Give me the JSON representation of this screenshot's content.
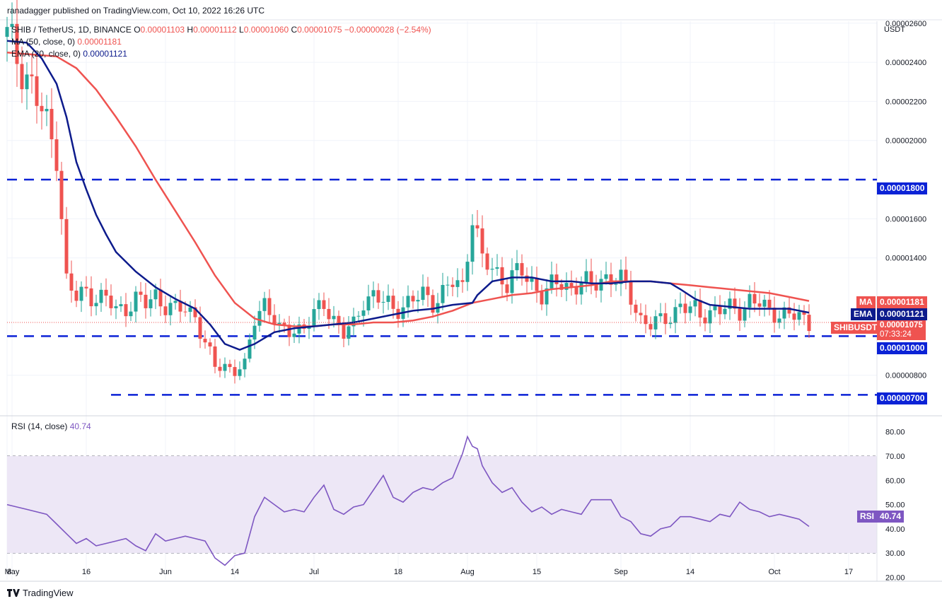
{
  "header": {
    "published": "ranadagger published on TradingView.com, Oct 10, 2022 16:26 UTC",
    "symbol": "SHIB / TetherUS, 1D, BINANCE",
    "o_label": "O",
    "o": "0.00001103",
    "h_label": "H",
    "h": "0.00001112",
    "l_label": "L",
    "l": "0.00001060",
    "c_label": "C",
    "c": "0.00001075",
    "change": "−0.00000028 (−2.54%)",
    "ma_label": "MA (50, close, 0)",
    "ma_value": "0.00001181",
    "ema_label": "EMA (20, close, 0)",
    "ema_value": "0.00001121",
    "rsi_label": "RSI (14, close)",
    "rsi_value": "40.74"
  },
  "footer": {
    "brand": "TradingView"
  },
  "tags": {
    "ma": "MA",
    "ma_value": "0.00001181",
    "ema": "EMA",
    "ema_value": "0.00001121",
    "symbol": "SHIBUSDT",
    "price": "0.00001075",
    "countdown": "07:33:24",
    "rsi": "RSI",
    "rsi_value": "40.74",
    "level_1800": "0.00001800",
    "level_1000": "0.00001000",
    "level_700": "0.00000700"
  },
  "colors": {
    "up": "#26a69a",
    "down": "#ef5350",
    "ma": "#ef5350",
    "ema": "#0d1b8c",
    "rsi": "#7e57c2",
    "rsi_band": "#ede7f6",
    "level": "#0b22d6"
  },
  "chart_data": [
    {
      "type": "candlestick",
      "title": "SHIB / TetherUS, 1D, BINANCE",
      "ylabel": "USDT",
      "ylim": [
        6e-06,
        2.61e-05
      ],
      "y_ticks": [
        "0.00002600",
        "0.00002400",
        "0.00002200",
        "0.00002000",
        "0.00001600",
        "0.00001400",
        "0.00000800"
      ],
      "x_ticks": [
        "8",
        "May",
        "16",
        "Jun",
        "14",
        "Jul",
        "18",
        "Aug",
        "15",
        "Sep",
        "14",
        "Oct",
        "17"
      ],
      "x_tick_days": [
        0,
        1,
        16,
        32,
        46,
        62,
        79,
        93,
        107,
        124,
        138,
        155,
        170
      ],
      "horizontal_levels": [
        1.8e-05,
        1e-05,
        7e-06
      ],
      "series": [
        {
          "name": "SHIBUSDT",
          "kind": "close",
          "days": [
            0,
            5,
            8,
            10,
            12,
            14,
            16,
            18,
            20,
            22,
            24,
            26,
            28,
            30,
            32,
            34,
            36,
            38,
            40,
            42,
            44,
            46,
            48,
            50,
            52,
            53,
            55,
            57,
            60,
            62,
            64,
            66,
            68,
            70,
            72,
            74,
            76,
            78,
            80,
            82,
            84,
            86,
            88,
            90,
            92,
            94,
            96,
            99,
            100,
            101,
            102,
            104,
            106,
            108,
            110,
            112,
            114,
            116,
            118,
            120,
            122,
            124,
            126,
            128,
            130,
            132,
            134,
            136,
            138,
            139,
            140,
            142,
            144,
            146,
            148,
            150,
            152,
            154,
            156,
            158,
            160,
            162
          ],
          "values": [
            2.53e-05,
            2.28e-05,
            2.07e-05,
            1.95e-05,
            1.28e-05,
            1.19e-05,
            1.23e-05,
            1.2e-05,
            1.19e-05,
            1.13e-05,
            1.15e-05,
            1.19e-05,
            1.16e-05,
            1.21e-05,
            1.16e-05,
            1.13e-05,
            1.14e-05,
            1.11e-05,
            9.6e-06,
            8.4e-06,
            8.5e-06,
            8.3e-06,
            8.4e-06,
            1.09e-05,
            1.18e-05,
            1.14e-05,
            1.02e-05,
            1.03e-05,
            1.05e-05,
            1.1e-05,
            1.17e-05,
            1.09e-05,
            1.01e-05,
            1.05e-05,
            1.19e-05,
            1.21e-05,
            1.17e-05,
            1.14e-05,
            1.16e-05,
            1.18e-05,
            1.21e-05,
            1.18e-05,
            1.22e-05,
            1.27e-05,
            1.25e-05,
            1.63e-05,
            1.38e-05,
            1.32e-05,
            1.3e-05,
            1.28e-05,
            1.31e-05,
            1.32e-05,
            1.27e-05,
            1.22e-05,
            1.25e-05,
            1.27e-05,
            1.25e-05,
            1.28e-05,
            1.25e-05,
            1.3e-05,
            1.3e-05,
            1.28e-05,
            1.2e-05,
            1.09e-05,
            1.06e-05,
            1.07e-05,
            1.11e-05,
            1.16e-05,
            1.13e-05,
            1.13e-05,
            1.11e-05,
            1.13e-05,
            1.13e-05,
            1.14e-05,
            1.14e-05,
            1.18e-05,
            1.16e-05,
            1.13e-05,
            1.12e-05,
            1.1e-05,
            1.1e-05,
            1.07e-05
          ]
        },
        {
          "name": "MA (50, close, 0)",
          "kind": "line",
          "days": [
            0,
            5,
            10,
            14,
            18,
            22,
            26,
            30,
            34,
            38,
            42,
            46,
            50,
            54,
            58,
            62,
            66,
            70,
            74,
            78,
            82,
            86,
            90,
            94,
            98,
            102,
            106,
            110,
            114,
            118,
            122,
            126,
            130,
            134,
            138,
            142,
            146,
            150,
            154,
            158,
            162
          ],
          "values": [
            2.45e-05,
            2.44e-05,
            2.43e-05,
            2.37e-05,
            2.26e-05,
            2.12e-05,
            1.97e-05,
            1.8e-05,
            1.64e-05,
            1.48e-05,
            1.31e-05,
            1.17e-05,
            1.09e-05,
            1.06e-05,
            1.05e-05,
            1.05e-05,
            1.06e-05,
            1.06e-05,
            1.07e-05,
            1.07e-05,
            1.08e-05,
            1.1e-05,
            1.13e-05,
            1.17e-05,
            1.19e-05,
            1.21e-05,
            1.22e-05,
            1.24e-05,
            1.25e-05,
            1.26e-05,
            1.28e-05,
            1.28e-05,
            1.28e-05,
            1.27e-05,
            1.26e-05,
            1.25e-05,
            1.24e-05,
            1.23e-05,
            1.22e-05,
            1.2e-05,
            1.18e-05
          ]
        },
        {
          "name": "EMA (20, close, 0)",
          "kind": "line",
          "days": [
            0,
            4,
            7,
            10,
            12,
            14,
            16,
            18,
            20,
            22,
            26,
            30,
            34,
            38,
            41,
            44,
            47,
            50,
            54,
            58,
            62,
            66,
            70,
            74,
            78,
            82,
            86,
            90,
            94,
            95,
            98,
            102,
            106,
            110,
            114,
            118,
            122,
            126,
            130,
            134,
            136,
            139,
            142,
            146,
            150,
            154,
            158,
            162
          ],
          "values": [
            2.51e-05,
            2.5e-05,
            2.42e-05,
            2.29e-05,
            2.12e-05,
            1.89e-05,
            1.75e-05,
            1.62e-05,
            1.52e-05,
            1.43e-05,
            1.33e-05,
            1.25e-05,
            1.19e-05,
            1.14e-05,
            1.06e-05,
            9.6e-06,
            9.3e-06,
            9.6e-06,
            1.02e-05,
            1.04e-05,
            1.05e-05,
            1.06e-05,
            1.07e-05,
            1.09e-05,
            1.11e-05,
            1.13e-05,
            1.14e-05,
            1.16e-05,
            1.17e-05,
            1.21e-05,
            1.28e-05,
            1.3e-05,
            1.3e-05,
            1.28e-05,
            1.28e-05,
            1.27e-05,
            1.27e-05,
            1.28e-05,
            1.28e-05,
            1.27e-05,
            1.24e-05,
            1.19e-05,
            1.16e-05,
            1.15e-05,
            1.14e-05,
            1.14e-05,
            1.14e-05,
            1.12e-05
          ]
        }
      ]
    },
    {
      "type": "line",
      "title": "RSI (14, close)",
      "ylim": [
        19,
        86
      ],
      "y_ticks": [
        "80.00",
        "70.00",
        "60.00",
        "50.00",
        "40.00",
        "30.00",
        "20.00"
      ],
      "bands": [
        30,
        70
      ],
      "midline": 50,
      "series": [
        {
          "name": "RSI (14, close)",
          "days": [
            0,
            4,
            8,
            10,
            12,
            14,
            16,
            18,
            20,
            22,
            24,
            26,
            28,
            30,
            32,
            34,
            36,
            38,
            40,
            42,
            44,
            46,
            48,
            50,
            52,
            54,
            56,
            58,
            60,
            62,
            64,
            66,
            68,
            70,
            72,
            74,
            76,
            78,
            80,
            82,
            84,
            86,
            88,
            90,
            92,
            93,
            94,
            95,
            96,
            98,
            100,
            102,
            104,
            106,
            108,
            110,
            112,
            114,
            116,
            118,
            120,
            122,
            124,
            126,
            128,
            130,
            132,
            134,
            136,
            138,
            140,
            142,
            144,
            146,
            148,
            150,
            152,
            154,
            156,
            158,
            160,
            162
          ],
          "values": [
            50,
            48,
            46,
            42,
            38,
            34,
            36,
            33,
            34,
            35,
            36,
            33,
            31,
            38,
            35,
            36,
            37,
            36,
            35,
            28,
            25,
            29,
            30,
            45,
            53,
            50,
            47,
            48,
            47,
            53,
            58,
            48,
            46,
            49,
            50,
            56,
            62,
            53,
            51,
            55,
            57,
            56,
            59,
            61,
            71,
            78,
            74,
            73,
            66,
            59,
            55,
            57,
            51,
            47,
            49,
            46,
            48,
            47,
            46,
            52,
            52,
            52,
            45,
            43,
            38,
            37,
            40,
            41,
            45,
            45,
            44,
            43,
            46,
            45,
            51,
            48,
            47,
            45,
            46,
            45,
            44,
            41
          ]
        }
      ]
    }
  ]
}
